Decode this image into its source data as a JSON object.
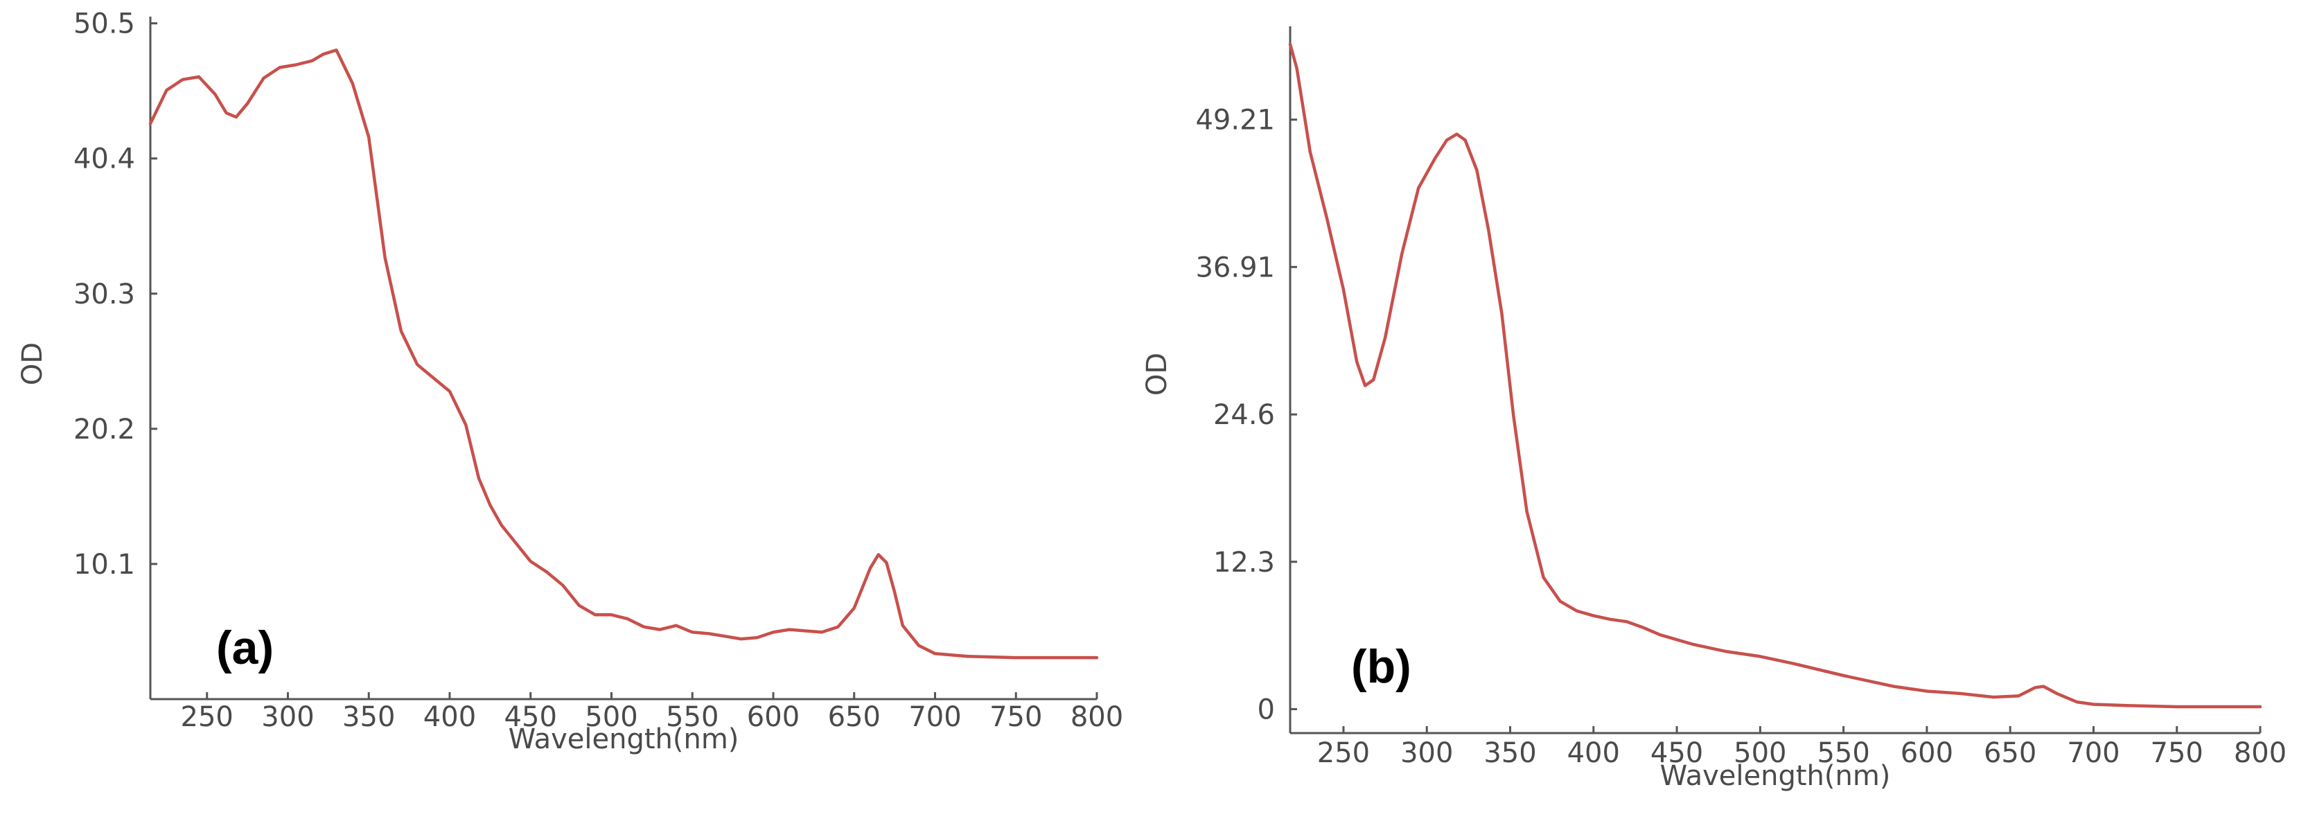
{
  "chart_data": [
    {
      "type": "line",
      "panel_label": "(a)",
      "xlabel": "Wavelength(nm)",
      "ylabel": "OD",
      "xlim": [
        215,
        800
      ],
      "ylim": [
        0,
        51
      ],
      "xticks": [
        250,
        300,
        350,
        400,
        450,
        500,
        550,
        600,
        650,
        700,
        750,
        800
      ],
      "yticks": [
        10.1,
        20.2,
        30.3,
        40.4,
        50.5
      ],
      "ytick_labels": [
        "10.1",
        "20.2",
        "30.3",
        "40.4",
        "50.5"
      ],
      "grid": false,
      "line_color": "#c8504b",
      "series": [
        {
          "x": [
            215,
            225,
            235,
            245,
            255,
            262,
            268,
            275,
            285,
            295,
            305,
            315,
            322,
            330,
            340,
            350,
            360,
            370,
            380,
            390,
            400,
            410,
            418,
            425,
            432,
            440,
            450,
            460,
            470,
            480,
            490,
            500,
            510,
            520,
            530,
            540,
            550,
            560,
            570,
            580,
            590,
            600,
            610,
            620,
            630,
            640,
            650,
            660,
            665,
            670,
            675,
            680,
            690,
            700,
            720,
            750,
            800
          ],
          "y": [
            43.0,
            45.5,
            46.3,
            46.5,
            45.2,
            43.8,
            43.5,
            44.5,
            46.4,
            47.2,
            47.4,
            47.7,
            48.2,
            48.5,
            46.0,
            42.0,
            33.0,
            27.5,
            25.0,
            24.0,
            23.0,
            20.5,
            16.5,
            14.5,
            13.0,
            11.8,
            10.3,
            9.5,
            8.5,
            7.0,
            6.3,
            6.3,
            6.0,
            5.4,
            5.2,
            5.5,
            5.0,
            4.9,
            4.7,
            4.5,
            4.6,
            5.0,
            5.2,
            5.1,
            5.0,
            5.4,
            6.8,
            9.8,
            10.8,
            10.2,
            8.0,
            5.5,
            4.0,
            3.4,
            3.2,
            3.1,
            3.1
          ]
        }
      ]
    },
    {
      "type": "line",
      "panel_label": "(b)",
      "xlabel": "Wavelength(nm)",
      "ylabel": "OD",
      "xlim": [
        218,
        800
      ],
      "ylim": [
        -2,
        57
      ],
      "xticks": [
        250,
        300,
        350,
        400,
        450,
        500,
        550,
        600,
        650,
        700,
        750,
        800
      ],
      "yticks": [
        0,
        12.3,
        24.6,
        36.91,
        49.21
      ],
      "ytick_labels": [
        "0",
        "12.3",
        "24.6",
        "36.91",
        "49.21"
      ],
      "grid": false,
      "line_color": "#c8504b",
      "series": [
        {
          "x": [
            218,
            222,
            230,
            240,
            250,
            258,
            263,
            268,
            275,
            285,
            295,
            305,
            312,
            318,
            323,
            330,
            337,
            345,
            352,
            360,
            370,
            380,
            390,
            400,
            410,
            420,
            430,
            440,
            460,
            480,
            500,
            520,
            550,
            580,
            600,
            620,
            640,
            655,
            665,
            670,
            678,
            690,
            700,
            720,
            750,
            800
          ],
          "y": [
            55.5,
            53.5,
            46.5,
            41.0,
            35.0,
            29.0,
            27.0,
            27.5,
            31.0,
            38.0,
            43.5,
            46.0,
            47.5,
            48.0,
            47.5,
            45.0,
            40.0,
            33.0,
            24.5,
            16.5,
            11.0,
            9.0,
            8.2,
            7.8,
            7.5,
            7.3,
            6.8,
            6.2,
            5.4,
            4.8,
            4.4,
            3.8,
            2.8,
            1.9,
            1.5,
            1.3,
            1.0,
            1.1,
            1.8,
            1.9,
            1.3,
            0.6,
            0.4,
            0.3,
            0.2,
            0.2
          ]
        }
      ]
    }
  ]
}
